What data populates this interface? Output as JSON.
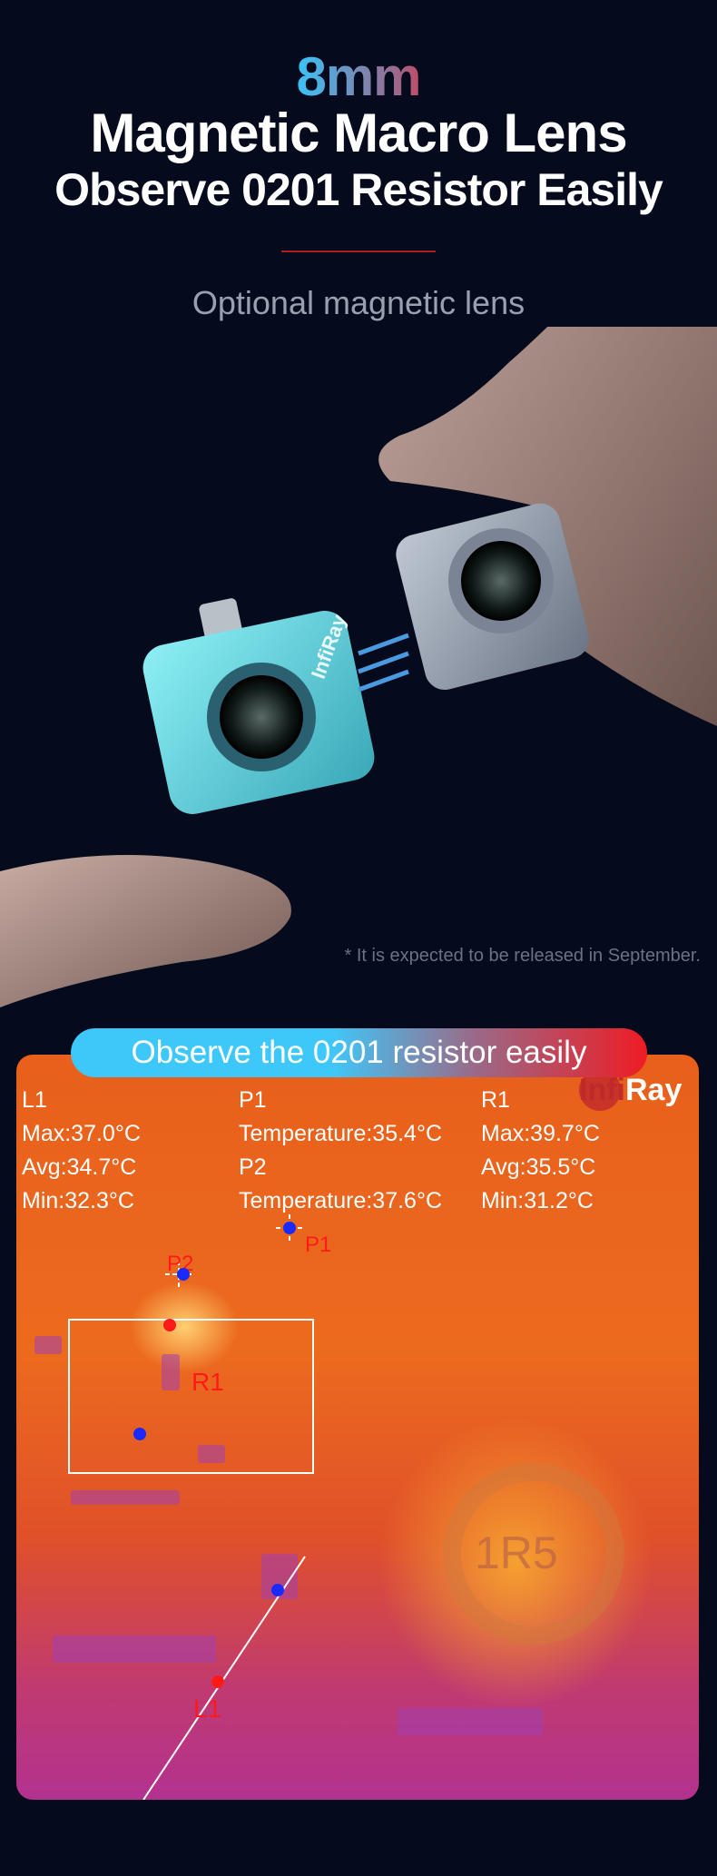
{
  "header": {
    "highlight": "8mm",
    "title": "Magnetic Macro Lens",
    "subtitle": "Observe 0201 Resistor Easily",
    "tagline": "Optional magnetic lens"
  },
  "product": {
    "brand": "InfiRay",
    "disclaimer": "* It is expected to be released in September."
  },
  "thermal": {
    "banner": "Observe the 0201 resistor easily",
    "brand_logo": "InfiRay",
    "component_marking": "1R5",
    "readouts": {
      "l1": {
        "name": "L1",
        "max": "Max:37.0°C",
        "avg": "Avg:34.7°C",
        "min": "Min:32.3°C"
      },
      "p1": {
        "name": "P1",
        "temp": "Temperature:35.4°C"
      },
      "p2": {
        "name": "P2",
        "temp": "Temperature:37.6°C"
      },
      "r1": {
        "name": "R1",
        "max": "Max:39.7°C",
        "avg": "Avg:35.5°C",
        "min": "Min:31.2°C"
      }
    },
    "markers": {
      "p1": "P1",
      "p2": "P2",
      "r1": "R1",
      "l1": "L1"
    },
    "colors": {
      "max_dot": "#ff1a1a",
      "min_dot": "#1a2aff"
    }
  }
}
